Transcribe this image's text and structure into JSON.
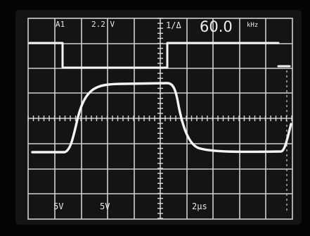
{
  "readouts": {
    "top_channel": "A1",
    "top_level": "2.2 V",
    "top_marker": "1/Δ",
    "frequency_value": "60.0",
    "frequency_unit": "kHz",
    "bottom_ch1": "5V",
    "bottom_ch2": "5V",
    "bottom_time": "2μs"
  },
  "colors": {
    "background": "#000000",
    "screen": "#141414",
    "grid": "#cfcfcf",
    "trace": "#f4f4f4",
    "text": "#e8e8e8"
  }
}
